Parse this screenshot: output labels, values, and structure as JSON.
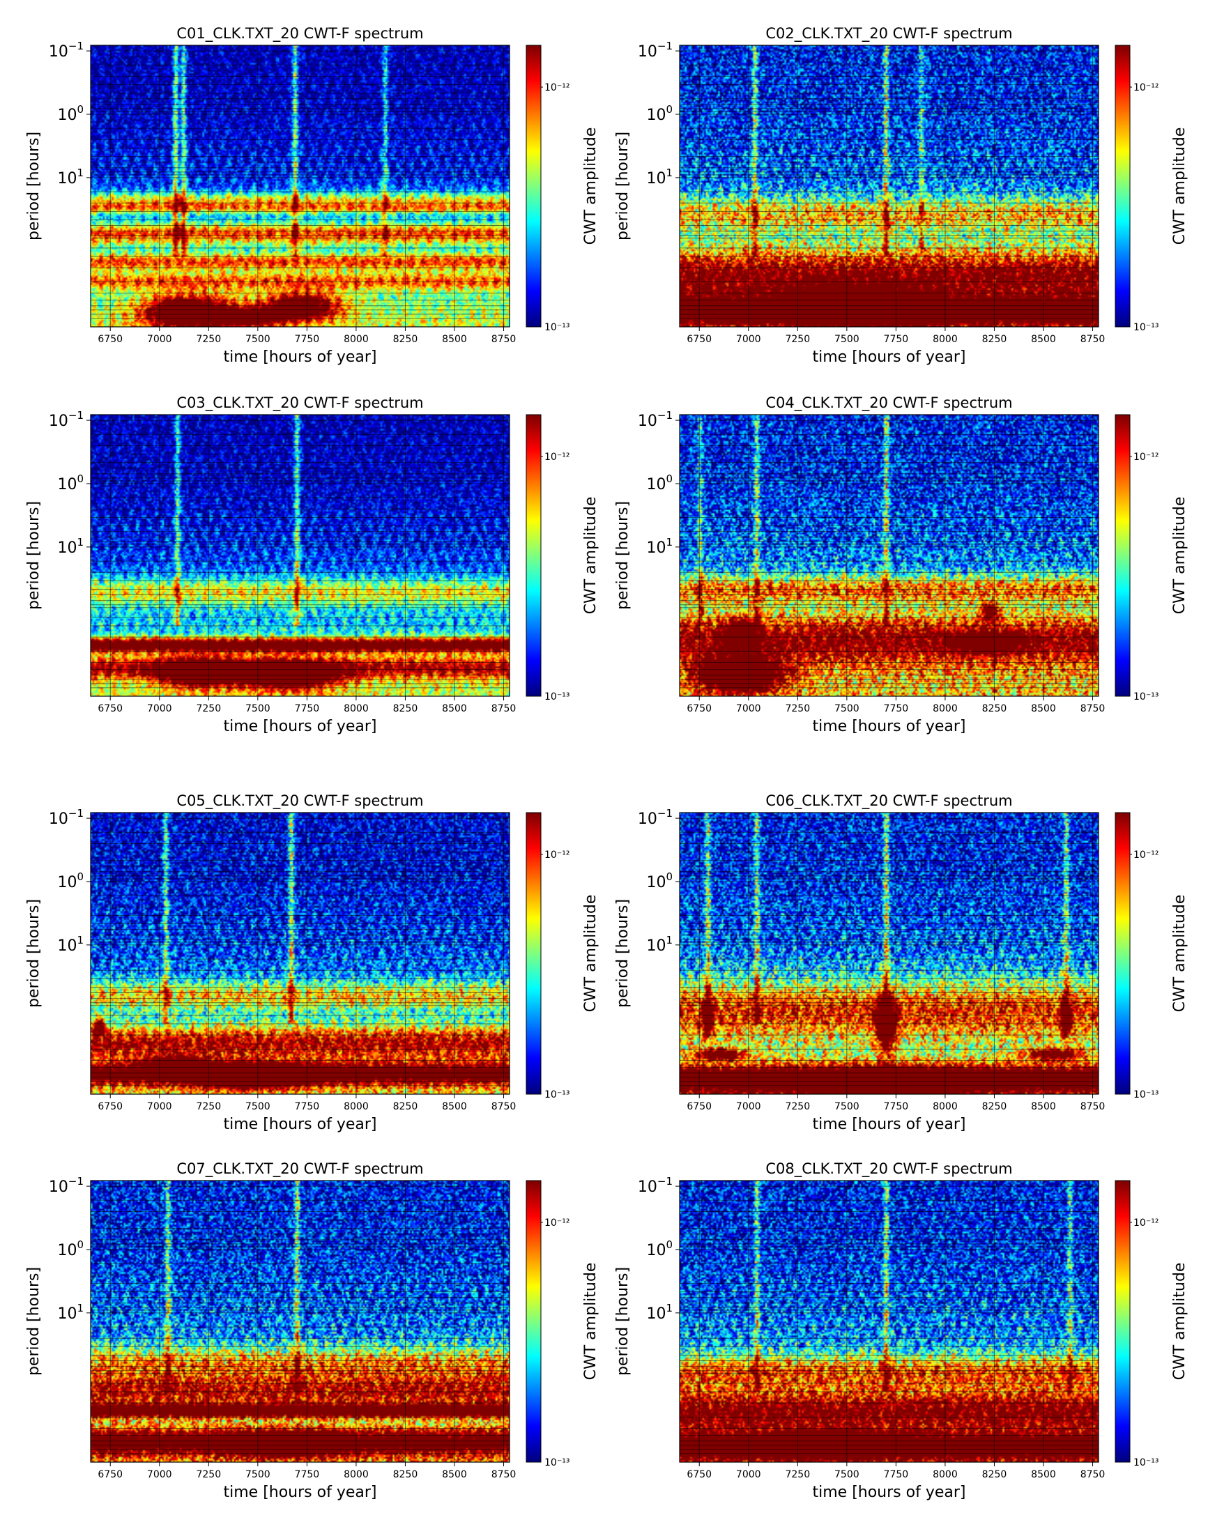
{
  "chart_data": [
    {
      "type": "heatmap",
      "title": "C01_CLK.TXT_20  CWT-F spectrum",
      "xlabel": "time [hours of year]",
      "ylabel": "period [hours]",
      "colorbar_label": "CWT amplitude",
      "colorbar_ticks": {
        "top": "10⁻¹²",
        "bottom": "10⁻¹³"
      },
      "xticks": [
        "6750",
        "7000",
        "7250",
        "7500",
        "7750",
        "8000",
        "8250",
        "8500",
        "8750"
      ],
      "xlim": [
        6650,
        8780
      ],
      "yticks": [
        {
          "base": "10",
          "exp": "−1"
        },
        {
          "base": "10",
          "exp": "0"
        },
        {
          "base": "10",
          "exp": "1"
        }
      ],
      "colormap": "jet",
      "noise": 0.28,
      "background": 0.05,
      "bands": [
        {
          "y": 0.55,
          "w": 0.03,
          "v": 0.42
        },
        {
          "y": 0.58,
          "w": 0.02,
          "v": 0.4
        },
        {
          "y": 0.67,
          "w": 0.04,
          "v": 0.55
        },
        {
          "y": 0.77,
          "w": 0.03,
          "v": 0.48
        },
        {
          "y": 0.84,
          "w": 0.03,
          "v": 0.38
        }
      ],
      "spikes": [
        {
          "x": 7080,
          "v": 0.52
        },
        {
          "x": 7120,
          "v": 0.5
        },
        {
          "x": 7690,
          "v": 0.55
        },
        {
          "x": 8150,
          "v": 0.4
        }
      ],
      "blobs": [
        {
          "x": 7150,
          "y": 0.95,
          "rx": 230,
          "ry": 0.06,
          "v": 0.95
        },
        {
          "x": 7720,
          "y": 0.93,
          "rx": 200,
          "ry": 0.05,
          "v": 0.85
        },
        {
          "x": 7450,
          "y": 0.97,
          "rx": 180,
          "ry": 0.03,
          "v": 0.65
        }
      ]
    },
    {
      "type": "heatmap",
      "title": "C02_CLK.TXT_20  CWT-F spectrum",
      "xlabel": "time [hours of year]",
      "ylabel": "period [hours]",
      "colorbar_label": "CWT amplitude",
      "colorbar_ticks": {
        "top": "10⁻¹²",
        "bottom": "10⁻¹³"
      },
      "xticks": [
        "6750",
        "7000",
        "7250",
        "7500",
        "7750",
        "8000",
        "8250",
        "8500",
        "8750"
      ],
      "xlim": [
        6650,
        8780
      ],
      "yticks": [
        {
          "base": "10",
          "exp": "−1"
        },
        {
          "base": "10",
          "exp": "0"
        },
        {
          "base": "10",
          "exp": "1"
        }
      ],
      "colormap": "jet",
      "noise": 0.45,
      "background": 0.12,
      "bands": [
        {
          "y": 0.6,
          "w": 0.06,
          "v": 0.4
        },
        {
          "y": 0.82,
          "w": 0.1,
          "v": 0.62
        },
        {
          "y": 0.95,
          "w": 0.05,
          "v": 0.78
        }
      ],
      "spikes": [
        {
          "x": 7030,
          "v": 0.48
        },
        {
          "x": 7700,
          "v": 0.5
        },
        {
          "x": 7880,
          "v": 0.38
        }
      ],
      "blobs": [
        {
          "x": 7550,
          "y": 0.93,
          "rx": 350,
          "ry": 0.06,
          "v": 0.8
        }
      ]
    },
    {
      "type": "heatmap",
      "title": "C03_CLK.TXT_20  CWT-F spectrum",
      "xlabel": "time [hours of year]",
      "ylabel": "period [hours]",
      "colorbar_label": "CWT amplitude",
      "colorbar_ticks": {
        "top": "10⁻¹²",
        "bottom": "10⁻¹³"
      },
      "xticks": [
        "6750",
        "7000",
        "7250",
        "7500",
        "7750",
        "8000",
        "8250",
        "8500",
        "8750"
      ],
      "xlim": [
        6650,
        8780
      ],
      "yticks": [
        {
          "base": "10",
          "exp": "−1"
        },
        {
          "base": "10",
          "exp": "0"
        },
        {
          "base": "10",
          "exp": "1"
        }
      ],
      "colormap": "jet",
      "noise": 0.3,
      "background": 0.05,
      "bands": [
        {
          "y": 0.63,
          "w": 0.05,
          "v": 0.38
        },
        {
          "y": 0.82,
          "w": 0.025,
          "v": 0.9
        },
        {
          "y": 0.9,
          "w": 0.04,
          "v": 0.5
        }
      ],
      "spikes": [
        {
          "x": 7090,
          "v": 0.45
        },
        {
          "x": 7700,
          "v": 0.52
        }
      ],
      "blobs": [
        {
          "x": 7200,
          "y": 0.92,
          "rx": 200,
          "ry": 0.05,
          "v": 0.85
        },
        {
          "x": 7650,
          "y": 0.93,
          "rx": 250,
          "ry": 0.05,
          "v": 0.85
        }
      ]
    },
    {
      "type": "heatmap",
      "title": "C04_CLK.TXT_20  CWT-F spectrum",
      "xlabel": "time [hours of year]",
      "ylabel": "period [hours]",
      "colorbar_label": "CWT amplitude",
      "colorbar_ticks": {
        "top": "10⁻¹²",
        "bottom": "10⁻¹³"
      },
      "xticks": [
        "6750",
        "7000",
        "7250",
        "7500",
        "7750",
        "8000",
        "8250",
        "8500",
        "8750"
      ],
      "xlim": [
        6650,
        8780
      ],
      "yticks": [
        {
          "base": "10",
          "exp": "−1"
        },
        {
          "base": "10",
          "exp": "0"
        },
        {
          "base": "10",
          "exp": "1"
        }
      ],
      "colormap": "jet",
      "noise": 0.45,
      "background": 0.12,
      "bands": [
        {
          "y": 0.62,
          "w": 0.05,
          "v": 0.45
        },
        {
          "y": 0.8,
          "w": 0.1,
          "v": 0.6
        }
      ],
      "spikes": [
        {
          "x": 6750,
          "v": 0.35
        },
        {
          "x": 7040,
          "v": 0.45
        },
        {
          "x": 7700,
          "v": 0.5
        }
      ],
      "blobs": [
        {
          "x": 6950,
          "y": 0.93,
          "rx": 220,
          "ry": 0.06,
          "v": 0.95
        },
        {
          "x": 6960,
          "y": 0.78,
          "rx": 80,
          "ry": 0.05,
          "v": 0.7
        },
        {
          "x": 8230,
          "y": 0.7,
          "rx": 40,
          "ry": 0.03,
          "v": 0.8
        },
        {
          "x": 8200,
          "y": 0.81,
          "rx": 150,
          "ry": 0.03,
          "v": 0.75
        }
      ]
    },
    {
      "type": "heatmap",
      "title": "C05_CLK.TXT_20  CWT-F spectrum",
      "xlabel": "time [hours of year]",
      "ylabel": "period [hours]",
      "colorbar_label": "CWT amplitude",
      "colorbar_ticks": {
        "top": "10⁻¹²",
        "bottom": "10⁻¹³"
      },
      "xticks": [
        "6750",
        "7000",
        "7250",
        "7500",
        "7750",
        "8000",
        "8250",
        "8500",
        "8750"
      ],
      "xlim": [
        6650,
        8780
      ],
      "yticks": [
        {
          "base": "10",
          "exp": "−1"
        },
        {
          "base": "10",
          "exp": "0"
        },
        {
          "base": "10",
          "exp": "1"
        }
      ],
      "colormap": "jet",
      "noise": 0.4,
      "background": 0.08,
      "bands": [
        {
          "y": 0.65,
          "w": 0.05,
          "v": 0.38
        },
        {
          "y": 0.82,
          "w": 0.06,
          "v": 0.55
        },
        {
          "y": 0.93,
          "w": 0.04,
          "v": 0.72
        }
      ],
      "spikes": [
        {
          "x": 7030,
          "v": 0.45
        },
        {
          "x": 7670,
          "v": 0.55
        }
      ],
      "blobs": [
        {
          "x": 6690,
          "y": 0.76,
          "rx": 30,
          "ry": 0.03,
          "v": 0.85
        },
        {
          "x": 7450,
          "y": 0.94,
          "rx": 300,
          "ry": 0.04,
          "v": 0.85
        },
        {
          "x": 7080,
          "y": 0.9,
          "rx": 150,
          "ry": 0.03,
          "v": 0.75
        }
      ]
    },
    {
      "type": "heatmap",
      "title": "C06_CLK.TXT_20  CWT-F spectrum",
      "xlabel": "time [hours of year]",
      "ylabel": "period [hours]",
      "colorbar_label": "CWT amplitude",
      "colorbar_ticks": {
        "top": "10⁻¹²",
        "bottom": "10⁻¹³"
      },
      "xticks": [
        "6750",
        "7000",
        "7250",
        "7500",
        "7750",
        "8000",
        "8250",
        "8500",
        "8750"
      ],
      "xlim": [
        6650,
        8780
      ],
      "yticks": [
        {
          "base": "10",
          "exp": "−1"
        },
        {
          "base": "10",
          "exp": "0"
        },
        {
          "base": "10",
          "exp": "1"
        }
      ],
      "colormap": "jet",
      "noise": 0.45,
      "background": 0.12,
      "bands": [
        {
          "y": 0.7,
          "w": 0.1,
          "v": 0.5
        },
        {
          "y": 0.95,
          "w": 0.05,
          "v": 0.85
        }
      ],
      "spikes": [
        {
          "x": 6790,
          "v": 0.5
        },
        {
          "x": 7040,
          "v": 0.45
        },
        {
          "x": 7700,
          "v": 0.55
        },
        {
          "x": 8620,
          "v": 0.5
        }
      ],
      "blobs": [
        {
          "x": 6790,
          "y": 0.74,
          "rx": 25,
          "ry": 0.05,
          "v": 0.95
        },
        {
          "x": 7700,
          "y": 0.76,
          "rx": 45,
          "ry": 0.09,
          "v": 1.0
        },
        {
          "x": 8620,
          "y": 0.74,
          "rx": 25,
          "ry": 0.05,
          "v": 0.95
        },
        {
          "x": 7700,
          "y": 0.96,
          "rx": 400,
          "ry": 0.04,
          "v": 0.95
        },
        {
          "x": 6850,
          "y": 0.86,
          "rx": 120,
          "ry": 0.02,
          "v": 0.8
        },
        {
          "x": 8560,
          "y": 0.86,
          "rx": 140,
          "ry": 0.02,
          "v": 0.8
        }
      ]
    },
    {
      "type": "heatmap",
      "title": "C07_CLK.TXT_20  CWT-F spectrum",
      "xlabel": "time [hours of year]",
      "ylabel": "period [hours]",
      "colorbar_label": "CWT amplitude",
      "colorbar_ticks": {
        "top": "10⁻¹²",
        "bottom": "10⁻¹³"
      },
      "xticks": [
        "6750",
        "7000",
        "7250",
        "7500",
        "7750",
        "8000",
        "8250",
        "8500",
        "8750"
      ],
      "xlim": [
        6650,
        8780
      ],
      "yticks": [
        {
          "base": "10",
          "exp": "−1"
        },
        {
          "base": "10",
          "exp": "0"
        },
        {
          "base": "10",
          "exp": "1"
        }
      ],
      "colormap": "jet",
      "noise": 0.45,
      "background": 0.12,
      "bands": [
        {
          "y": 0.65,
          "w": 0.06,
          "v": 0.4
        },
        {
          "y": 0.75,
          "w": 0.06,
          "v": 0.55
        },
        {
          "y": 0.82,
          "w": 0.022,
          "v": 0.95
        },
        {
          "y": 0.93,
          "w": 0.05,
          "v": 0.7
        }
      ],
      "spikes": [
        {
          "x": 7040,
          "v": 0.45
        },
        {
          "x": 7700,
          "v": 0.5
        }
      ],
      "blobs": [
        {
          "x": 7650,
          "y": 0.94,
          "rx": 250,
          "ry": 0.04,
          "v": 0.78
        }
      ]
    },
    {
      "type": "heatmap",
      "title": "C08_CLK.TXT_20  CWT-F spectrum",
      "xlabel": "time [hours of year]",
      "ylabel": "period [hours]",
      "colorbar_label": "CWT amplitude",
      "colorbar_ticks": {
        "top": "10⁻¹²",
        "bottom": "10⁻¹³"
      },
      "xticks": [
        "6750",
        "7000",
        "7250",
        "7500",
        "7750",
        "8000",
        "8250",
        "8500",
        "8750"
      ],
      "xlim": [
        6650,
        8780
      ],
      "yticks": [
        {
          "base": "10",
          "exp": "−1"
        },
        {
          "base": "10",
          "exp": "0"
        },
        {
          "base": "10",
          "exp": "1"
        }
      ],
      "colormap": "jet",
      "noise": 0.45,
      "background": 0.12,
      "bands": [
        {
          "y": 0.68,
          "w": 0.06,
          "v": 0.45
        },
        {
          "y": 0.82,
          "w": 0.08,
          "v": 0.62
        },
        {
          "y": 0.95,
          "w": 0.05,
          "v": 0.78
        }
      ],
      "spikes": [
        {
          "x": 7040,
          "v": 0.45
        },
        {
          "x": 7700,
          "v": 0.5
        },
        {
          "x": 8640,
          "v": 0.38
        }
      ],
      "blobs": [
        {
          "x": 7400,
          "y": 0.94,
          "rx": 300,
          "ry": 0.04,
          "v": 0.8
        }
      ]
    }
  ]
}
